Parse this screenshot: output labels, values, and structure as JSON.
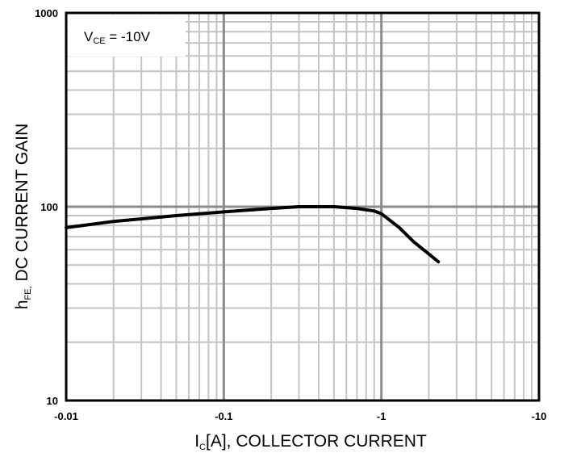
{
  "chart_data": {
    "type": "line",
    "x_scale": "log",
    "y_scale": "log",
    "xlim": [
      -0.01,
      -10
    ],
    "ylim": [
      10,
      1000
    ],
    "grid": true,
    "x_ticks": [
      "-0.01",
      "-0.1",
      "-1",
      "-10"
    ],
    "y_ticks": [
      "1000",
      "100",
      "10"
    ],
    "xlabel_main": "I",
    "xlabel_sub": "C",
    "xlabel_rest": "[A], COLLECTOR CURRENT",
    "ylabel_main": "h",
    "ylabel_sub": "FE,",
    "ylabel_rest": " DC CURRENT GAIN",
    "annotation_main": "V",
    "annotation_sub": "CE",
    "annotation_rest": " = -10V",
    "series": [
      {
        "x": [
          -0.01,
          -0.02,
          -0.05,
          -0.1,
          -0.2,
          -0.3,
          -0.5,
          -0.7,
          -0.9,
          -1.0,
          -1.3,
          -1.6,
          -2.0,
          -2.3
        ],
        "y": [
          78,
          84,
          90,
          94,
          98,
          100,
          100,
          98,
          95,
          92,
          78,
          66,
          57,
          52
        ]
      }
    ]
  }
}
